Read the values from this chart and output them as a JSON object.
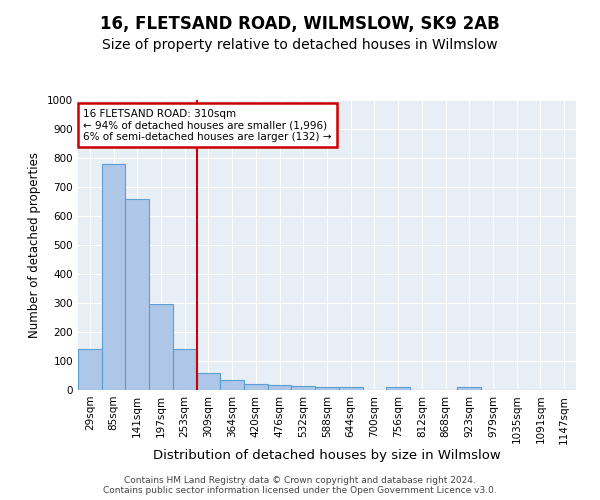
{
  "title": "16, FLETSAND ROAD, WILMSLOW, SK9 2AB",
  "subtitle": "Size of property relative to detached houses in Wilmslow",
  "xlabel": "Distribution of detached houses by size in Wilmslow",
  "ylabel": "Number of detached properties",
  "categories": [
    "29sqm",
    "85sqm",
    "141sqm",
    "197sqm",
    "253sqm",
    "309sqm",
    "364sqm",
    "420sqm",
    "476sqm",
    "532sqm",
    "588sqm",
    "644sqm",
    "700sqm",
    "756sqm",
    "812sqm",
    "868sqm",
    "923sqm",
    "979sqm",
    "1035sqm",
    "1091sqm",
    "1147sqm"
  ],
  "values": [
    140,
    780,
    660,
    295,
    140,
    57,
    35,
    22,
    18,
    13,
    10,
    10,
    0,
    10,
    0,
    0,
    10,
    0,
    0,
    0,
    0
  ],
  "bar_color": "#aec6e8",
  "bar_edge_color": "#5a9fd4",
  "bar_linewidth": 0.8,
  "vline_position": 4.5,
  "vline_color": "#cc0000",
  "annotation_text": "16 FLETSAND ROAD: 310sqm\n← 94% of detached houses are smaller (1,996)\n6% of semi-detached houses are larger (132) →",
  "annotation_box_color": "#ffffff",
  "annotation_box_edge_color": "#cc0000",
  "ylim": [
    0,
    1000
  ],
  "yticks": [
    0,
    100,
    200,
    300,
    400,
    500,
    600,
    700,
    800,
    900,
    1000
  ],
  "background_color": "#e8eef5",
  "footer_text": "Contains HM Land Registry data © Crown copyright and database right 2024.\nContains public sector information licensed under the Open Government Licence v3.0.",
  "title_fontsize": 12,
  "subtitle_fontsize": 10,
  "xlabel_fontsize": 9.5,
  "ylabel_fontsize": 8.5,
  "tick_fontsize": 7.5,
  "footer_fontsize": 6.5,
  "annot_fontsize": 7.5
}
